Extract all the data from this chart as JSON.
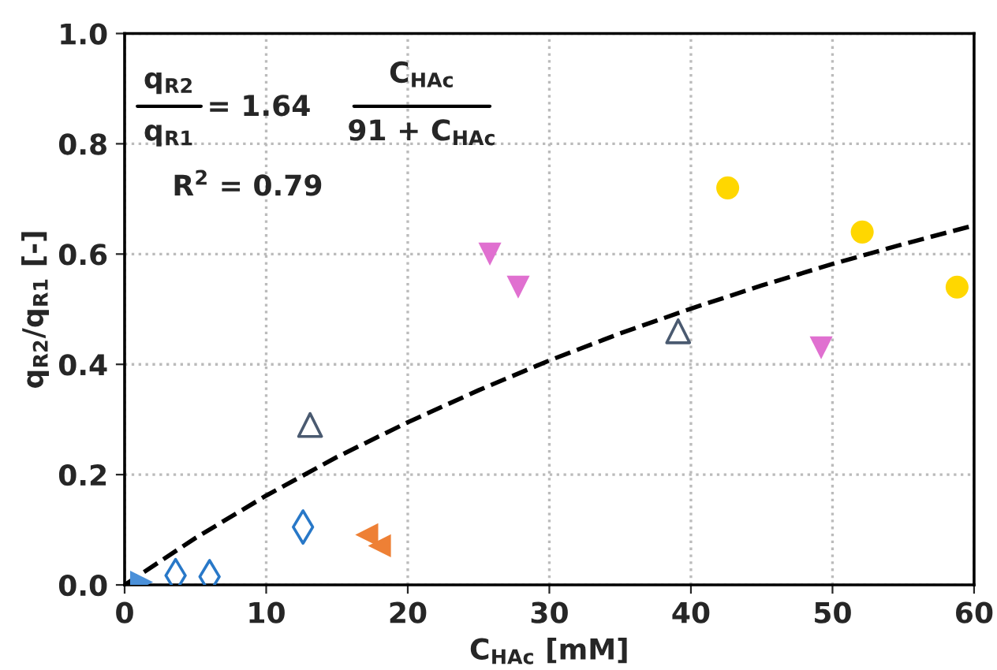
{
  "chart_data": {
    "type": "scatter",
    "xlabel": "C$_{HAc}$ [mM]",
    "ylabel": "q$_{R2}$/q$_{R1}$ [-]",
    "xlim": [
      0,
      60
    ],
    "xticks": [
      0,
      10,
      20,
      30,
      40,
      50,
      60
    ],
    "ylim": [
      0,
      1.0
    ],
    "yticks": [
      {
        "value": 0,
        "label": "0.0"
      },
      {
        "value": 0.2,
        "label": "0.2"
      },
      {
        "value": 0.4,
        "label": "0.4"
      },
      {
        "value": 0.6,
        "label": "0.6"
      },
      {
        "value": 0.8,
        "label": "0.8"
      },
      {
        "value": 1.0,
        "label": "1.0"
      }
    ],
    "grid": true,
    "legend": false,
    "annotations": [
      "q$_{R2}$",
      "q$_{R1}$",
      "= 1.64",
      "C$_{HAc}$",
      "91 + C$_{HAc}$",
      "R$^{2}$ = 0.79"
    ],
    "series": [
      {
        "color": "#4a90d9",
        "marker": "triangle-right",
        "x": [
          1.2
        ],
        "values": [
          0.005
        ]
      },
      {
        "color": "#2878c8",
        "marker": "diamond",
        "x": [
          3.6,
          6.0,
          12.6
        ],
        "values": [
          0.017,
          0.015,
          0.105
        ]
      },
      {
        "color": "#4a5a70",
        "marker": "triangle",
        "x": [
          13.1,
          39.1
        ],
        "values": [
          0.29,
          0.46
        ]
      },
      {
        "color": "#ee8035",
        "marker": "triangle-left",
        "x": [
          17.1,
          18.0
        ],
        "values": [
          0.091,
          0.071
        ]
      },
      {
        "color": "#e070d0",
        "marker": "triangle-down",
        "x": [
          25.8,
          27.8,
          49.2
        ],
        "values": [
          0.6,
          0.54,
          0.43
        ]
      },
      {
        "color": "#ffd700",
        "marker": "circle",
        "x": [
          42.6,
          52.1,
          58.8
        ],
        "values": [
          0.72,
          0.64,
          0.54
        ]
      },
      {
        "type": "line",
        "color": "#000000",
        "line_style": "dashed",
        "marker": "none",
        "x": [
          0,
          5,
          10,
          15,
          20,
          25,
          30,
          35,
          40,
          45,
          50,
          55,
          60
        ],
        "values": [
          0,
          0.085,
          0.162,
          0.232,
          0.295,
          0.353,
          0.407,
          0.456,
          0.501,
          0.543,
          0.582,
          0.618,
          0.652
        ]
      }
    ]
  }
}
